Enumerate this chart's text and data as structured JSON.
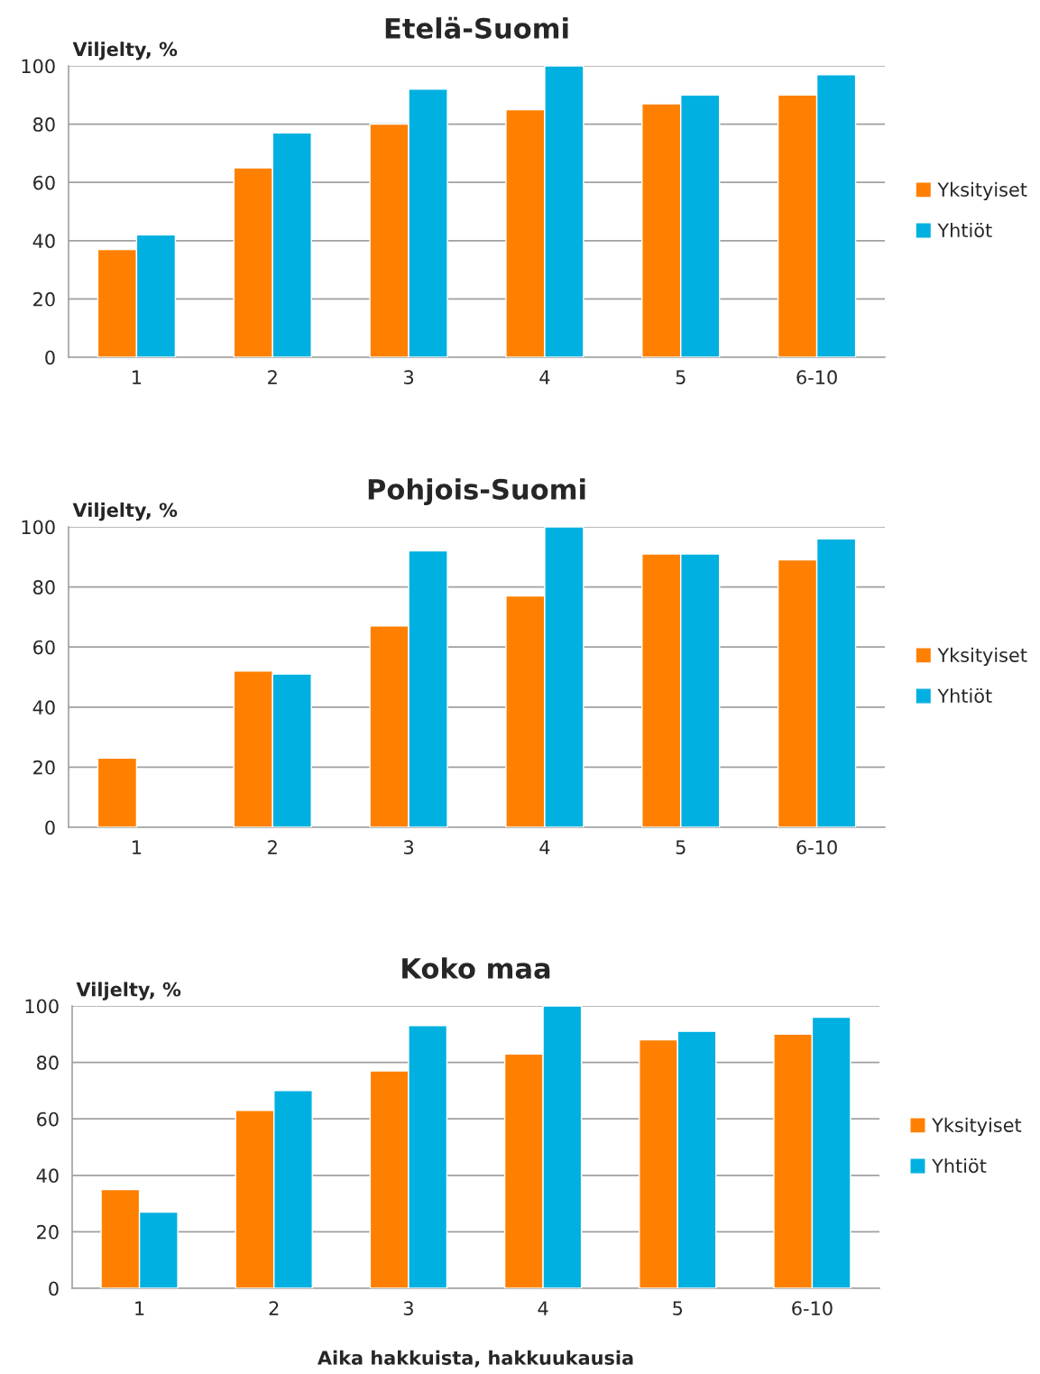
{
  "chart_data": [
    {
      "type": "bar",
      "title": "Etelä-Suomi",
      "ylabel": "Viljelty, %",
      "categories": [
        "1",
        "2",
        "3",
        "4",
        "5",
        "6-10"
      ],
      "series": [
        {
          "name": "Yksityiset",
          "color": "#ff8000",
          "values": [
            37,
            65,
            80,
            85,
            87,
            90
          ]
        },
        {
          "name": "Yhtiöt",
          "color": "#00b0e0",
          "values": [
            42,
            77,
            92,
            100,
            90,
            97
          ]
        }
      ],
      "ylim": [
        0,
        100
      ],
      "yticks": [
        0,
        20,
        40,
        60,
        80,
        100
      ],
      "grid": "y",
      "legend": "right"
    },
    {
      "type": "bar",
      "title": "Pohjois-Suomi",
      "ylabel": "Viljelty, %",
      "categories": [
        "1",
        "2",
        "3",
        "4",
        "5",
        "6-10"
      ],
      "series": [
        {
          "name": "Yksityiset",
          "color": "#ff8000",
          "values": [
            23,
            52,
            67,
            77,
            91,
            89
          ]
        },
        {
          "name": "Yhtiöt",
          "color": "#00b0e0",
          "values": [
            null,
            51,
            92,
            100,
            91,
            96
          ]
        }
      ],
      "ylim": [
        0,
        100
      ],
      "yticks": [
        0,
        20,
        40,
        60,
        80,
        100
      ],
      "grid": "y",
      "legend": "right"
    },
    {
      "type": "bar",
      "title": "Koko maa",
      "ylabel": "Viljelty, %",
      "xlabel": "Aika hakkuista, hakkuukausia",
      "categories": [
        "1",
        "2",
        "3",
        "4",
        "5",
        "6-10"
      ],
      "series": [
        {
          "name": "Yksityiset",
          "color": "#ff8000",
          "values": [
            35,
            63,
            77,
            83,
            88,
            90
          ]
        },
        {
          "name": "Yhtiöt",
          "color": "#00b0e0",
          "values": [
            27,
            70,
            93,
            100,
            91,
            96
          ]
        }
      ],
      "ylim": [
        0,
        100
      ],
      "yticks": [
        0,
        20,
        40,
        60,
        80,
        100
      ],
      "grid": "y",
      "legend": "right"
    }
  ]
}
